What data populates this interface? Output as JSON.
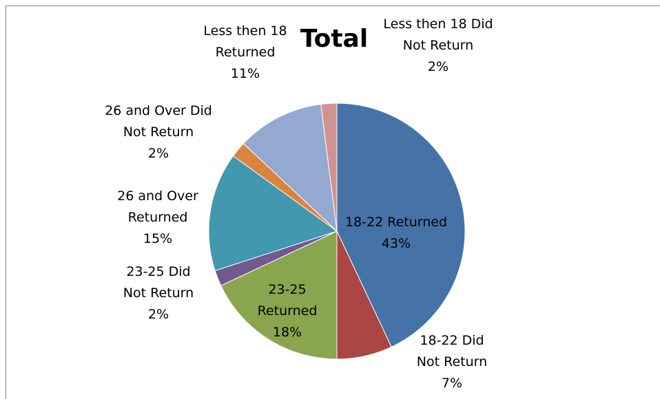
{
  "chart_data": {
    "type": "pie",
    "title": "Total",
    "categories": [
      "18-22 Returned",
      "18-22 Did Not Return",
      "23-25 Returned",
      "23-25 Did Not Return",
      "26 and Over Returned",
      "26 and Over Did Not Return",
      "Less then 18 Returned",
      "Less then 18 Did Not Return"
    ],
    "values": [
      43,
      7,
      18,
      2,
      15,
      2,
      11,
      2
    ],
    "value_labels": [
      "43%",
      "7%",
      "18%",
      "2%",
      "15%",
      "2%",
      "11%",
      "2%"
    ],
    "colors": [
      "#4572a7",
      "#aa4643",
      "#89a54e",
      "#71588f",
      "#4198af",
      "#db843d",
      "#93a9cf",
      "#d19392"
    ]
  }
}
